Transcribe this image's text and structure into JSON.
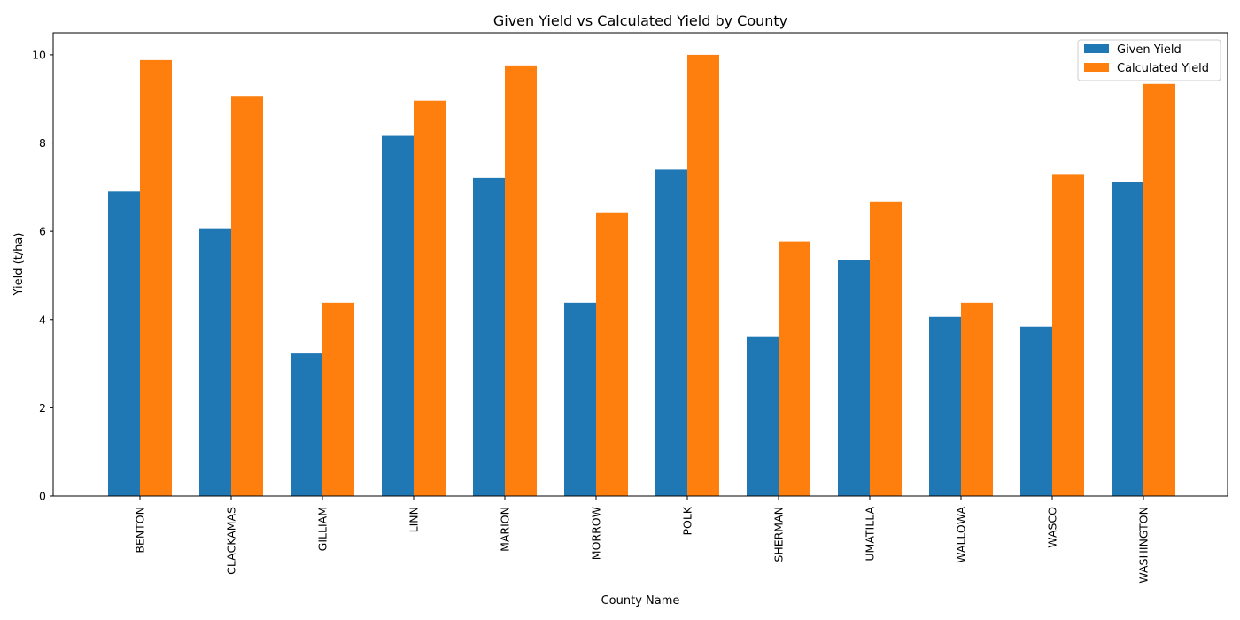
{
  "chart_data": {
    "type": "bar",
    "title": "Given Yield vs Calculated Yield by County",
    "xlabel": "County Name",
    "ylabel": "Yield (t/ha)",
    "ylim": [
      0,
      10.5
    ],
    "yticks": [
      0,
      2,
      4,
      6,
      8,
      10
    ],
    "categories": [
      "BENTON",
      "CLACKAMAS",
      "GILLIAM",
      "LINN",
      "MARION",
      "MORROW",
      "POLK",
      "SHERMAN",
      "UMATILLA",
      "WALLOWA",
      "WASCO",
      "WASHINGTON"
    ],
    "series": [
      {
        "name": "Given Yield",
        "color": "#1f77b4",
        "values": [
          6.9,
          6.07,
          3.23,
          8.18,
          7.21,
          4.38,
          7.4,
          3.62,
          5.35,
          4.06,
          3.84,
          7.12
        ]
      },
      {
        "name": "Calculated Yield",
        "color": "#ff7f0e",
        "values": [
          9.88,
          9.07,
          4.38,
          8.96,
          9.76,
          6.43,
          10.0,
          5.77,
          6.67,
          4.38,
          7.28,
          9.34
        ]
      }
    ],
    "legend_position": "top-right",
    "grid": false
  }
}
